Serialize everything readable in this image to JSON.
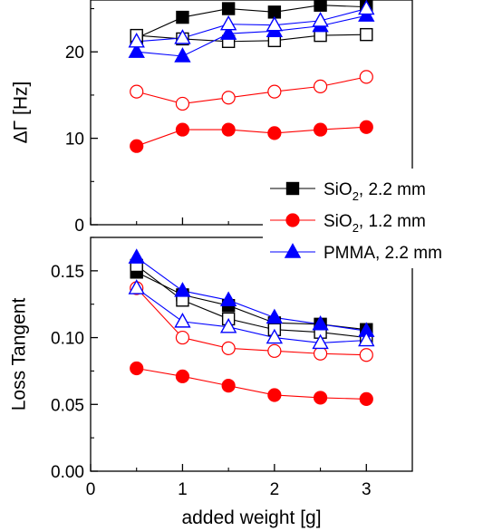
{
  "chart_data": [
    {
      "type": "line",
      "panel": "top",
      "ylabel": "ΔΓ [Hz]",
      "xlabel": "",
      "xlim": [
        0,
        3.5
      ],
      "ylim": [
        0,
        26
      ],
      "yticks": [
        0,
        10,
        20
      ],
      "ytick_labels": [
        "0",
        "10",
        "20"
      ],
      "series": [
        {
          "legend": 0,
          "fill": "filled",
          "marker": "square",
          "color": "#000000",
          "x": [
            0.5,
            1,
            1.5,
            2,
            2.5,
            3
          ],
          "y": [
            21.6,
            24.0,
            25.0,
            24.6,
            25.4,
            25.2
          ]
        },
        {
          "legend": 0,
          "fill": "open",
          "marker": "square",
          "color": "#000000",
          "x": [
            0.5,
            1,
            1.5,
            2,
            2.5,
            3
          ],
          "y": [
            21.9,
            21.5,
            21.2,
            21.3,
            21.9,
            22.0
          ]
        },
        {
          "legend": 1,
          "fill": "filled",
          "marker": "circle",
          "color": "#ff0000",
          "x": [
            0.5,
            1,
            1.5,
            2,
            2.5,
            3
          ],
          "y": [
            9.1,
            11.0,
            11.0,
            10.6,
            11.0,
            11.3
          ]
        },
        {
          "legend": 1,
          "fill": "open",
          "marker": "circle",
          "color": "#ff0000",
          "x": [
            0.5,
            1,
            1.5,
            2,
            2.5,
            3
          ],
          "y": [
            15.4,
            14.0,
            14.7,
            15.4,
            16.0,
            17.1
          ]
        },
        {
          "legend": 2,
          "fill": "filled",
          "marker": "triangle",
          "color": "#0000ff",
          "x": [
            0.5,
            1,
            1.5,
            2,
            2.5,
            3
          ],
          "y": [
            20.0,
            19.5,
            22.1,
            22.4,
            23.0,
            24.2
          ]
        },
        {
          "legend": 2,
          "fill": "open",
          "marker": "triangle",
          "color": "#0000ff",
          "x": [
            0.5,
            1,
            1.5,
            2,
            2.5,
            3
          ],
          "y": [
            21.2,
            21.6,
            23.2,
            23.1,
            23.6,
            25.0
          ]
        }
      ]
    },
    {
      "type": "line",
      "panel": "bottom",
      "ylabel": "Loss Tangent",
      "xlabel": "added weight [g]",
      "xlim": [
        0,
        3.5
      ],
      "ylim": [
        0,
        0.175
      ],
      "xticks": [
        0,
        1,
        2,
        3
      ],
      "xtick_labels": [
        "0",
        "1",
        "2",
        "3"
      ],
      "yticks": [
        0,
        0.05,
        0.1,
        0.15
      ],
      "ytick_labels": [
        "0.00",
        "0.05",
        "0.10",
        "0.15"
      ],
      "series": [
        {
          "legend": 0,
          "fill": "filled",
          "marker": "square",
          "color": "#000000",
          "x": [
            0.5,
            1,
            1.5,
            2,
            2.5,
            3
          ],
          "y": [
            0.149,
            0.132,
            0.124,
            0.111,
            0.11,
            0.106
          ]
        },
        {
          "legend": 0,
          "fill": "open",
          "marker": "square",
          "color": "#000000",
          "x": [
            0.5,
            1,
            1.5,
            2,
            2.5,
            3
          ],
          "y": [
            0.154,
            0.128,
            0.114,
            0.106,
            0.104,
            0.1
          ]
        },
        {
          "legend": 1,
          "fill": "filled",
          "marker": "circle",
          "color": "#ff0000",
          "x": [
            0.5,
            1,
            1.5,
            2,
            2.5,
            3
          ],
          "y": [
            0.077,
            0.071,
            0.064,
            0.057,
            0.055,
            0.054
          ]
        },
        {
          "legend": 1,
          "fill": "open",
          "marker": "circle",
          "color": "#ff0000",
          "x": [
            0.5,
            1,
            1.5,
            2,
            2.5,
            3
          ],
          "y": [
            0.137,
            0.1,
            0.092,
            0.09,
            0.088,
            0.087
          ]
        },
        {
          "legend": 2,
          "fill": "filled",
          "marker": "triangle",
          "color": "#0000ff",
          "x": [
            0.5,
            1,
            1.5,
            2,
            2.5,
            3
          ],
          "y": [
            0.16,
            0.135,
            0.128,
            0.115,
            0.11,
            0.105
          ]
        },
        {
          "legend": 2,
          "fill": "open",
          "marker": "triangle",
          "color": "#0000ff",
          "x": [
            0.5,
            1,
            1.5,
            2,
            2.5,
            3
          ],
          "y": [
            0.137,
            0.112,
            0.108,
            0.1,
            0.096,
            0.098
          ]
        }
      ]
    }
  ],
  "legend": {
    "placement": "right-center",
    "entries": [
      {
        "label_main": "SiO",
        "label_sub": "2",
        "label_tail": ", 2.2 mm",
        "marker": "square",
        "color": "#000000"
      },
      {
        "label_main": "SiO",
        "label_sub": "2",
        "label_tail": ", 1.2 mm",
        "marker": "circle",
        "color": "#ff0000"
      },
      {
        "label_main": "PMMA, 2.2 mm",
        "label_sub": "",
        "label_tail": "",
        "marker": "triangle",
        "color": "#0000ff"
      }
    ]
  }
}
